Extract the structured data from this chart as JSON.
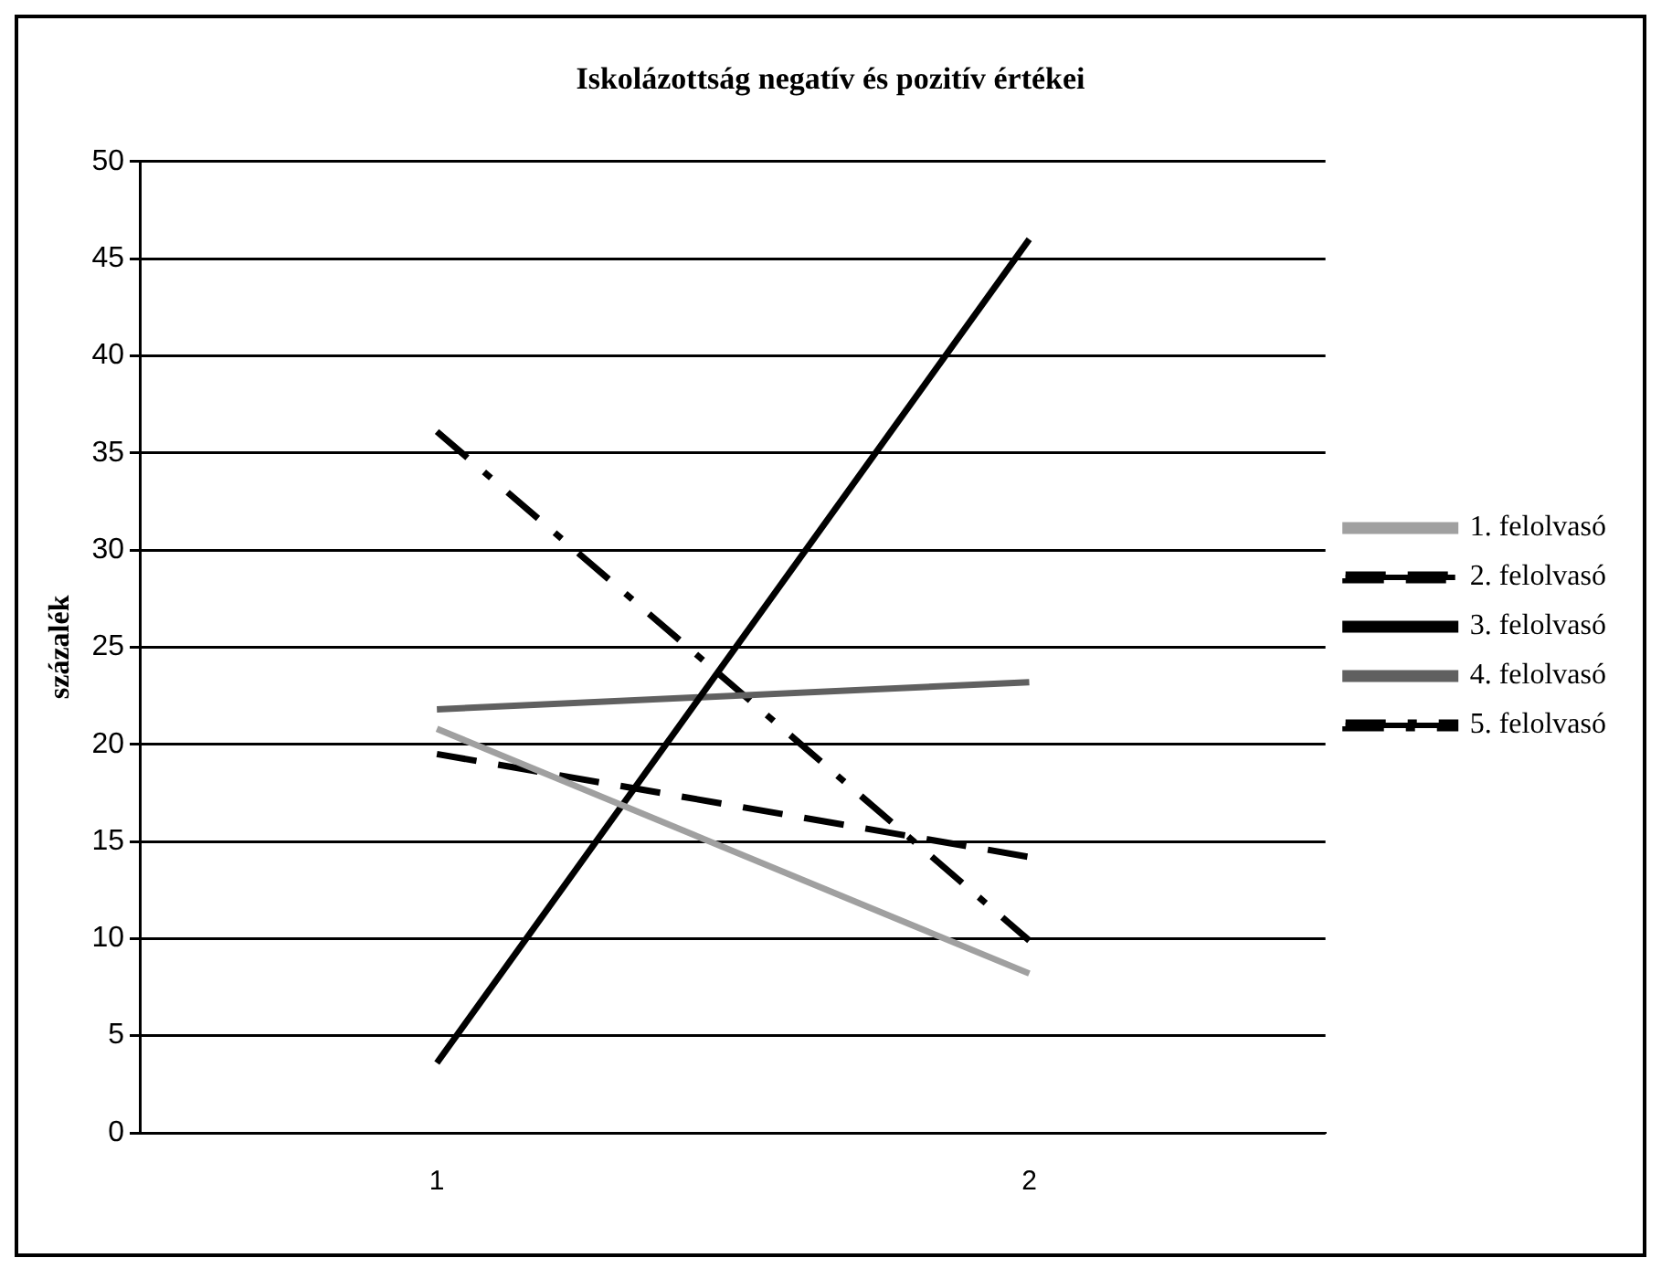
{
  "chart_data": {
    "type": "line",
    "title": "Iskolázottság negatív és pozitív értékei",
    "ylabel": "százalék",
    "categories": [
      "1",
      "2"
    ],
    "series": [
      {
        "name": "1. felolvasó",
        "color": "#a0a0a0",
        "values": [
          20.8,
          8.2
        ],
        "line_style": "solid"
      },
      {
        "name": "2. felolvasó",
        "color": "#000000",
        "values": [
          19.5,
          14.2
        ],
        "line_style": "dashed"
      },
      {
        "name": "3. felolvasó",
        "color": "#000000",
        "values": [
          3.6,
          46
        ],
        "line_style": "solid"
      },
      {
        "name": "4. felolvasó",
        "color": "#606060",
        "values": [
          21.8,
          23.2
        ],
        "line_style": "solid"
      },
      {
        "name": "5. felolvasó",
        "color": "#000000",
        "values": [
          36.1,
          9.9
        ],
        "line_style": "dashdot"
      }
    ],
    "ylim": [
      0,
      50
    ],
    "yticks": [
      0,
      5,
      10,
      15,
      20,
      25,
      30,
      35,
      40,
      45,
      50
    ],
    "grid": "y",
    "legend": "right",
    "marker": "none"
  }
}
